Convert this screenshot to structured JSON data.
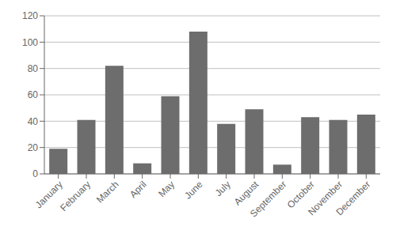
{
  "chart_data": {
    "type": "bar",
    "categories": [
      "January",
      "February",
      "March",
      "April",
      "May",
      "June",
      "July",
      "August",
      "September",
      "October",
      "November",
      "December"
    ],
    "values": [
      19,
      41,
      82,
      8,
      59,
      108,
      38,
      49,
      7,
      43,
      41,
      45
    ],
    "color": "#6d6d6d",
    "ylim": [
      0,
      120
    ],
    "yticks": [
      0,
      20,
      40,
      60,
      80,
      100,
      120
    ],
    "grid": true
  }
}
